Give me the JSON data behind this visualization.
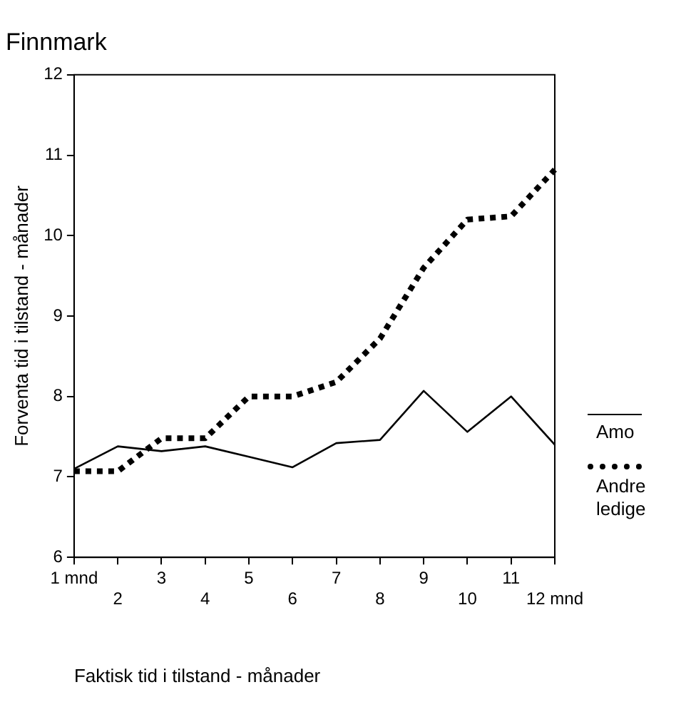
{
  "chart_data": {
    "type": "line",
    "title": "Finnmark",
    "xlabel": "Faktisk tid i tilstand - månader",
    "ylabel": "Forventa tid i tilstand - månader",
    "categories": [
      "1 mnd",
      "2",
      "3",
      "4",
      "5",
      "6",
      "7",
      "8",
      "9",
      "10",
      "11",
      "12 mnd"
    ],
    "series": [
      {
        "name": "Amo",
        "color": "#000000",
        "line_style": "solid",
        "values": [
          7.1,
          7.38,
          7.32,
          7.38,
          7.25,
          7.12,
          7.42,
          7.46,
          8.07,
          7.56,
          8.0,
          7.4
        ]
      },
      {
        "name": "Andre ledige",
        "color": "#000000",
        "line_style": "dotted",
        "values": [
          7.07,
          7.07,
          7.48,
          7.48,
          8.0,
          8.0,
          8.18,
          8.72,
          9.6,
          10.2,
          10.24,
          10.82
        ]
      }
    ],
    "ylim": [
      6,
      12
    ],
    "yticks": [
      6,
      7,
      8,
      9,
      10,
      11,
      12
    ],
    "grid": false,
    "legend": "right",
    "marker": "none"
  }
}
